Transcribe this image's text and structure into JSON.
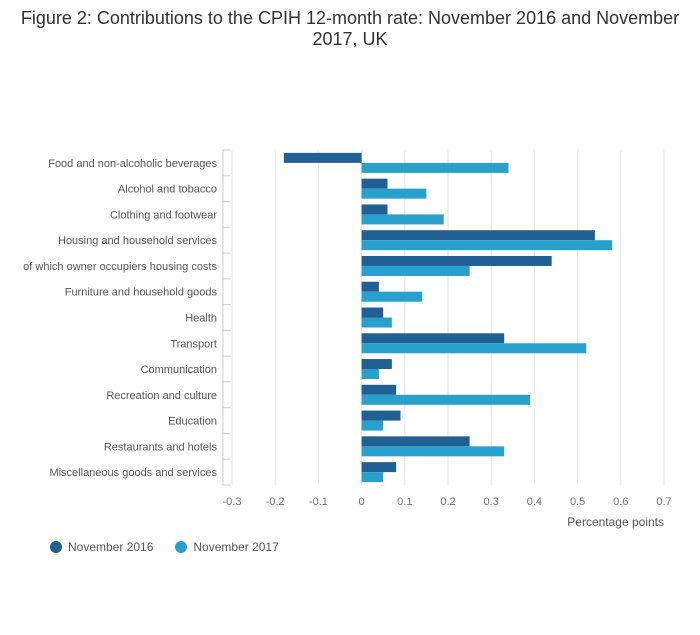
{
  "chart_data": {
    "type": "bar",
    "orientation": "horizontal",
    "title": "Figure 2: Contributions to the CPIH 12-month rate: November 2016 and November 2017, UK",
    "xlabel": "Percentage points",
    "xlim": [
      -0.3,
      0.7
    ],
    "xticks": [
      -0.3,
      -0.2,
      -0.1,
      0,
      0.1,
      0.2,
      0.3,
      0.4,
      0.5,
      0.6,
      0.7
    ],
    "grid": true,
    "legend_position": "bottom-left",
    "categories": [
      "Food and non-alcoholic beverages",
      "Alcohol and tobacco",
      "Clothing and footwear",
      "Housing and household services",
      "of which owner occupiers housing costs",
      "Furniture and household goods",
      "Health",
      "Transport",
      "Communication",
      "Recreation and culture",
      "Education",
      "Restaurants and hotels",
      "Miscellaneous goods and services"
    ],
    "series": [
      {
        "name": "November 2016",
        "color": "#206095",
        "values": [
          -0.18,
          0.06,
          0.06,
          0.54,
          0.44,
          0.04,
          0.05,
          0.33,
          0.07,
          0.08,
          0.09,
          0.25,
          0.08
        ]
      },
      {
        "name": "November 2017",
        "color": "#27a0cc",
        "values": [
          0.34,
          0.15,
          0.19,
          0.58,
          0.25,
          0.14,
          0.07,
          0.52,
          0.04,
          0.39,
          0.05,
          0.33,
          0.05
        ]
      }
    ]
  }
}
